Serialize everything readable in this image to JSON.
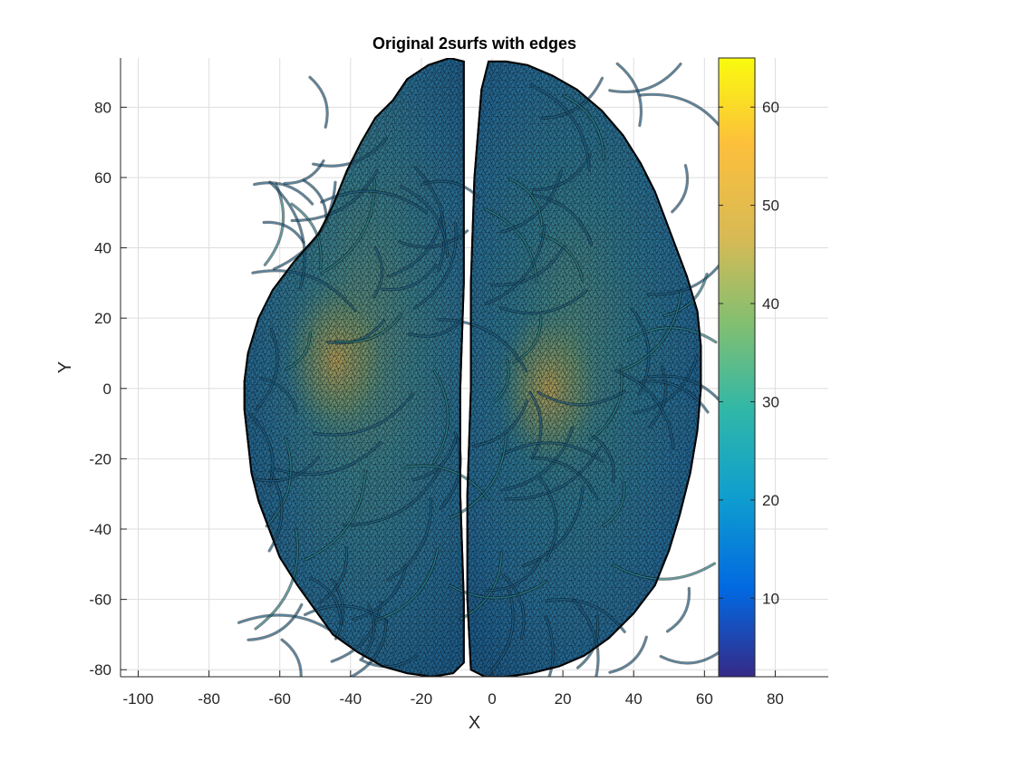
{
  "window": {
    "title": ""
  },
  "chart_data": {
    "type": "surface",
    "view": "top-down (X-Y plane)",
    "title": "Original 2surfs with edges",
    "xlabel": "X",
    "ylabel": "Y",
    "xlim": [
      -105,
      95
    ],
    "ylim": [
      -82,
      94
    ],
    "xticks": [
      -100,
      -80,
      -60,
      -40,
      -20,
      0,
      20,
      40,
      60,
      80
    ],
    "yticks": [
      -80,
      -60,
      -40,
      -20,
      0,
      20,
      40,
      60,
      80
    ],
    "xtick_labels": [
      "-100",
      "-80",
      "-60",
      "-40",
      "-20",
      "0",
      "20",
      "40",
      "60",
      "80"
    ],
    "ytick_labels": [
      "-80",
      "-60",
      "-40",
      "-20",
      "0",
      "20",
      "40",
      "60",
      "80"
    ],
    "grid": true,
    "colormap": "parula",
    "edges_visible": true,
    "surfaces": [
      {
        "hemisphere": "left",
        "x_range": [
          -70,
          -8
        ],
        "y_range": [
          -82,
          94
        ]
      },
      {
        "hemisphere": "right",
        "x_range": [
          -8,
          58
        ],
        "y_range": [
          -82,
          93
        ]
      }
    ],
    "colorbar": {
      "position": "right",
      "range": [
        2,
        65
      ],
      "ticks": [
        10,
        20,
        30,
        40,
        50,
        60
      ],
      "tick_labels": [
        "10",
        "20",
        "30",
        "40",
        "50",
        "60"
      ],
      "colors": [
        "#352a87",
        "#0268e1",
        "#0f9ecf",
        "#30b7a8",
        "#82bf71",
        "#d8ba55",
        "#fcbf3c",
        "#f9fb0e"
      ]
    }
  }
}
